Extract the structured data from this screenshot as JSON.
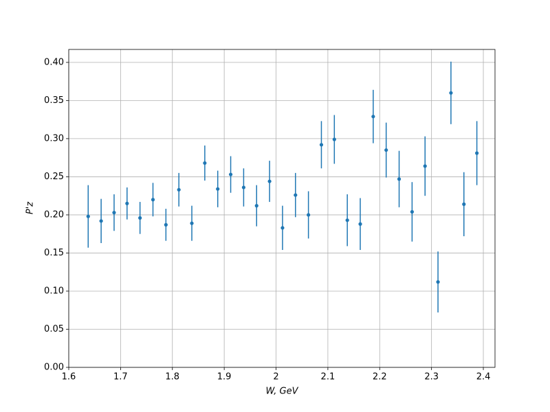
{
  "chart_data": {
    "type": "errorbar",
    "xlabel": "W, GeV",
    "ylabel": "P'z",
    "color": "#1f77b4",
    "grid": true,
    "xlim": [
      1.6,
      2.4225
    ],
    "ylim": [
      0,
      0.417
    ],
    "xticks": [
      1.6,
      1.7,
      1.8,
      1.9,
      2.0,
      2.1,
      2.2,
      2.3,
      2.4
    ],
    "yticks": [
      {
        "value": 0,
        "label": "0.00"
      },
      {
        "value": 0.05,
        "label": "0.05"
      },
      {
        "value": 0.1,
        "label": "0.10"
      },
      {
        "value": 0.15,
        "label": "0.15"
      },
      {
        "value": 0.2,
        "label": "0.20"
      },
      {
        "value": 0.25,
        "label": "0.25"
      },
      {
        "value": 0.3,
        "label": "0.30"
      },
      {
        "value": 0.35,
        "label": "0.35"
      },
      {
        "value": 0.4,
        "label": "0.40"
      }
    ],
    "x": [
      1.6375,
      1.6625,
      1.6875,
      1.7125,
      1.7375,
      1.7625,
      1.7875,
      1.8125,
      1.8375,
      1.8625,
      1.8875,
      1.9125,
      1.9375,
      1.9625,
      1.9875,
      2.0125,
      2.0375,
      2.0625,
      2.0875,
      2.1125,
      2.1375,
      2.1625,
      2.1875,
      2.2125,
      2.2375,
      2.2625,
      2.2875,
      2.3125,
      2.3375,
      2.3625,
      2.3875
    ],
    "values": [
      0.198,
      0.192,
      0.203,
      0.215,
      0.196,
      0.22,
      0.187,
      0.233,
      0.189,
      0.268,
      0.234,
      0.253,
      0.236,
      0.212,
      0.244,
      0.183,
      0.226,
      0.2,
      0.292,
      0.299,
      0.193,
      0.188,
      0.329,
      0.285,
      0.247,
      0.204,
      0.264,
      0.112,
      0.36,
      0.214,
      0.281
    ],
    "errors": [
      0.041,
      0.029,
      0.024,
      0.021,
      0.021,
      0.022,
      0.021,
      0.022,
      0.023,
      0.023,
      0.024,
      0.024,
      0.025,
      0.027,
      0.027,
      0.029,
      0.029,
      0.031,
      0.031,
      0.032,
      0.034,
      0.034,
      0.035,
      0.036,
      0.037,
      0.039,
      0.039,
      0.04,
      0.041,
      0.042,
      0.042
    ]
  }
}
